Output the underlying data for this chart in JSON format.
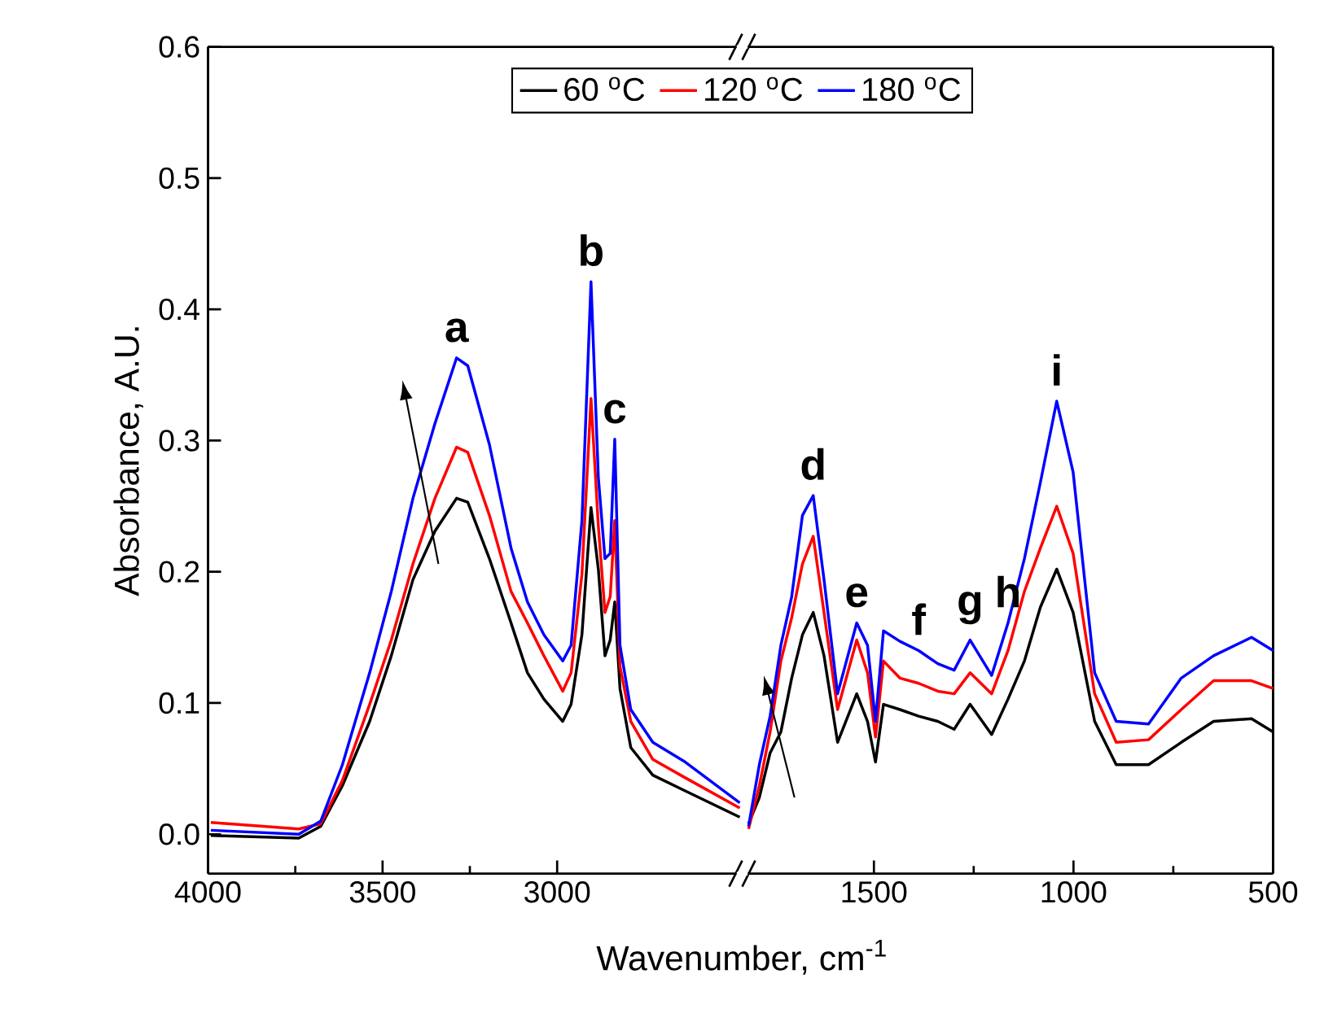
{
  "chart_data": [
    {
      "type": "line",
      "ylabel": "Absorbance, A.U.",
      "xlabel": "Wavenumber, cm$^{-1}$",
      "xlim": [
        4000,
        2470
      ],
      "xticks": [
        4000,
        3500,
        3000
      ],
      "ylim": [
        -0.03,
        0.6
      ],
      "yticks": [
        {
          "value": 0,
          "label": "0.0"
        },
        {
          "value": 0.1,
          "label": "0.1"
        },
        {
          "value": 0.2,
          "label": "0.2"
        },
        {
          "value": 0.3,
          "label": "0.3"
        },
        {
          "value": 0.4,
          "label": "0.4"
        },
        {
          "value": 0.5,
          "label": "0.5"
        },
        {
          "value": 0.6,
          "label": "0.6"
        }
      ],
      "legend": "top",
      "x": [
        3992,
        3740,
        3677,
        3615,
        3537,
        3475,
        3413,
        3350,
        3288,
        3256,
        3194,
        3132,
        3085,
        3038,
        2984,
        2960,
        2929,
        2903,
        2882,
        2863,
        2848,
        2835,
        2820,
        2789,
        2726,
        2633,
        2477
      ],
      "series": [
        {
          "name": "60 $^{o}$C",
          "color": "#000000",
          "values": [
            -0.001,
            -0.003,
            0.006,
            0.037,
            0.086,
            0.136,
            0.194,
            0.231,
            0.256,
            0.253,
            0.21,
            0.161,
            0.123,
            0.103,
            0.086,
            0.099,
            0.152,
            0.249,
            0.202,
            0.136,
            0.148,
            0.177,
            0.111,
            0.066,
            0.045,
            0.033,
            0.013
          ]
        },
        {
          "name": "120 $^{o}$C",
          "color": "#ff0000",
          "values": [
            0.009,
            0.004,
            0.008,
            0.041,
            0.099,
            0.148,
            0.206,
            0.256,
            0.295,
            0.291,
            0.243,
            0.185,
            0.161,
            0.136,
            0.109,
            0.123,
            0.198,
            0.332,
            0.235,
            0.169,
            0.181,
            0.239,
            0.128,
            0.086,
            0.057,
            0.043,
            0.02
          ]
        },
        {
          "name": "180 $^{o}$C",
          "color": "#0000ff",
          "values": [
            0.003,
            0.0,
            0.01,
            0.053,
            0.123,
            0.185,
            0.256,
            0.313,
            0.363,
            0.357,
            0.297,
            0.218,
            0.177,
            0.152,
            0.132,
            0.144,
            0.239,
            0.421,
            0.272,
            0.21,
            0.214,
            0.301,
            0.144,
            0.095,
            0.07,
            0.055,
            0.024
          ]
        }
      ],
      "annotations": [
        {
          "text": "a",
          "x": 3288,
          "y": 0.363
        },
        {
          "text": "b",
          "x": 2903,
          "y": 0.421
        },
        {
          "text": "c",
          "x": 2835,
          "y": 0.301
        }
      ]
    },
    {
      "type": "line",
      "tick_labels": "x",
      "xlim": [
        1830,
        500
      ],
      "xticks": [
        1500,
        1000,
        500
      ],
      "ylim": [
        -0.03,
        0.6
      ],
      "x": [
        1814,
        1787,
        1760,
        1733,
        1706,
        1679,
        1652,
        1625,
        1591,
        1543,
        1516,
        1496,
        1476,
        1435,
        1388,
        1340,
        1299,
        1259,
        1205,
        1164,
        1123,
        1083,
        1042,
        1001,
        947,
        893,
        812,
        730,
        649,
        554,
        500
      ],
      "series": [
        {
          "color": "#000000",
          "values": [
            0.008,
            0.028,
            0.062,
            0.078,
            0.119,
            0.152,
            0.169,
            0.136,
            0.07,
            0.107,
            0.086,
            0.055,
            0.099,
            0.095,
            0.09,
            0.086,
            0.08,
            0.099,
            0.076,
            0.103,
            0.132,
            0.173,
            0.202,
            0.169,
            0.086,
            0.053,
            0.053,
            0.07,
            0.086,
            0.088,
            0.078
          ]
        },
        {
          "color": "#ff0000",
          "values": [
            0.004,
            0.037,
            0.078,
            0.132,
            0.165,
            0.206,
            0.227,
            0.169,
            0.095,
            0.148,
            0.123,
            0.074,
            0.132,
            0.119,
            0.115,
            0.109,
            0.107,
            0.123,
            0.107,
            0.14,
            0.185,
            0.218,
            0.25,
            0.214,
            0.107,
            0.07,
            0.072,
            0.095,
            0.117,
            0.117,
            0.111
          ]
        },
        {
          "color": "#0000ff",
          "values": [
            0.006,
            0.053,
            0.09,
            0.144,
            0.181,
            0.243,
            0.258,
            0.194,
            0.107,
            0.161,
            0.144,
            0.086,
            0.155,
            0.147,
            0.14,
            0.13,
            0.125,
            0.148,
            0.121,
            0.161,
            0.21,
            0.268,
            0.33,
            0.276,
            0.123,
            0.086,
            0.084,
            0.119,
            0.136,
            0.15,
            0.14
          ]
        }
      ],
      "annotations": [
        {
          "text": "d",
          "x": 1652,
          "y": 0.258
        },
        {
          "text": "e",
          "x": 1543,
          "y": 0.161
        },
        {
          "text": "f",
          "x": 1388,
          "y": 0.14
        },
        {
          "text": "g",
          "x": 1259,
          "y": 0.148
        },
        {
          "text": "h",
          "x": 1164,
          "y": 0.161
        },
        {
          "text": "i",
          "x": 1042,
          "y": 0.33
        }
      ]
    }
  ]
}
